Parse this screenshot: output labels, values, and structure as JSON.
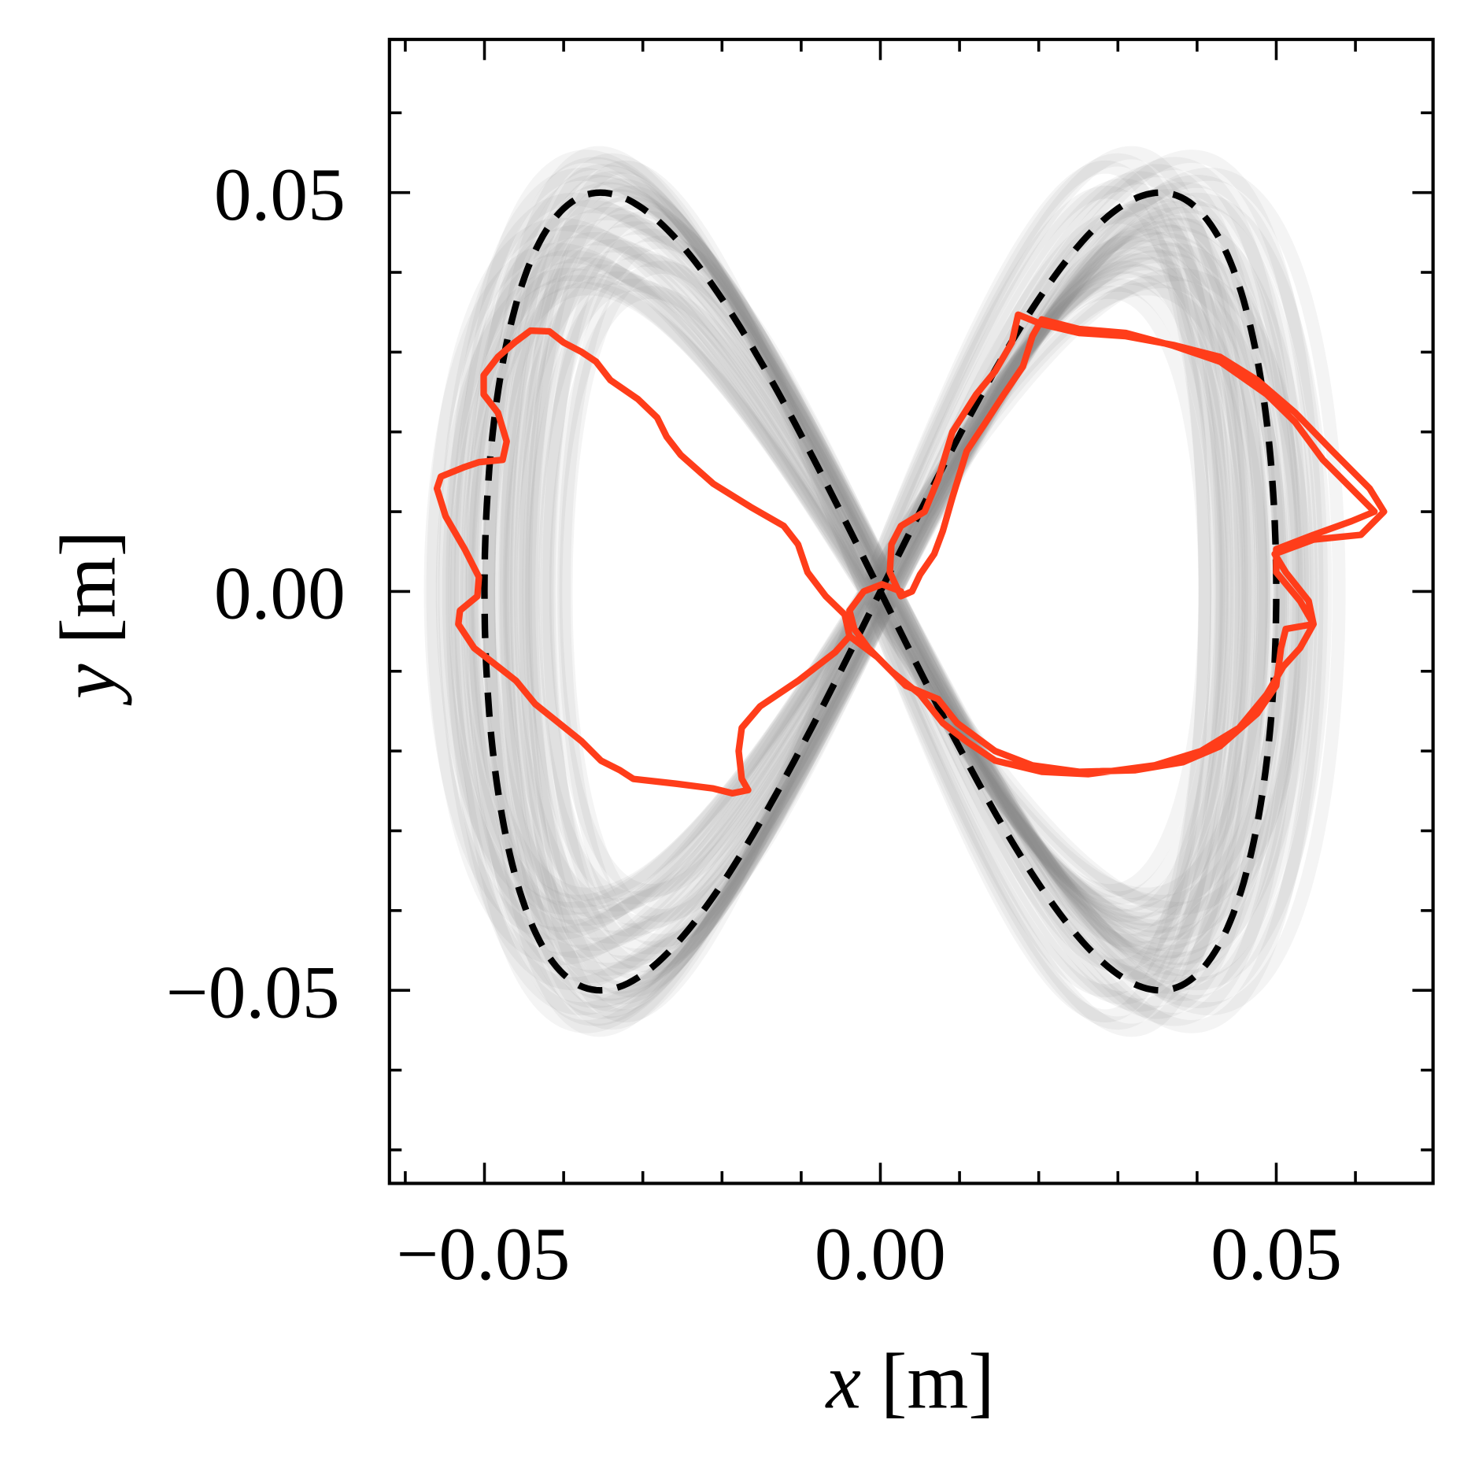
{
  "chart_data": {
    "type": "line",
    "title": "",
    "xlabel": {
      "var": "x",
      "unit": " [m]"
    },
    "ylabel": {
      "var": "y",
      "unit": " [m]"
    },
    "xlim": [
      -0.062,
      0.0698
    ],
    "ylim": [
      -0.0742,
      0.0692
    ],
    "x_ticks": [
      -0.05,
      0.0,
      0.05
    ],
    "x_tick_labels": [
      "−0.05",
      "0.00",
      "0.05"
    ],
    "y_ticks": [
      0.05,
      0.0,
      -0.05
    ],
    "y_tick_labels": [
      "0.05",
      "0.00",
      "−0.05"
    ],
    "minor_tick_step": 0.01,
    "grid": false,
    "legend": "none",
    "colors": {
      "reference": "#000000",
      "trajectory": "#ff3d1a",
      "ensemble": "#808080"
    },
    "reference": {
      "style": "dashed",
      "equation": "x = 0.05 sin t, y = 0.05 sin 2t"
    },
    "series": [
      {
        "style": "solid",
        "x": [
          -0.0167,
          -0.0175,
          -0.0179,
          -0.0175,
          -0.0152,
          -0.0104,
          -0.0057,
          -0.0039,
          -0.0045,
          -0.0069,
          -0.0092,
          -0.0104,
          -0.0122,
          -0.0164,
          -0.0211,
          -0.0252,
          -0.027,
          -0.0282,
          -0.0306,
          -0.0341,
          -0.0359,
          -0.0377,
          -0.04,
          -0.0418,
          -0.0442,
          -0.0462,
          -0.0483,
          -0.0501,
          -0.0501,
          -0.0483,
          -0.0472,
          -0.0477,
          -0.0507,
          -0.0525,
          -0.0555,
          -0.056,
          -0.0549,
          -0.0525,
          -0.0507,
          -0.0509,
          -0.0531,
          -0.0533,
          -0.0513,
          -0.0483,
          -0.046,
          -0.0436,
          -0.0406,
          -0.0377,
          -0.0353,
          -0.0329,
          -0.0312,
          -0.0258,
          -0.0211,
          -0.0187,
          -0.0167
        ],
        "y": [
          -0.0249,
          -0.0235,
          -0.02,
          -0.0171,
          -0.0144,
          -0.0112,
          -0.0076,
          -0.0056,
          -0.0029,
          -0.0006,
          0.0024,
          0.0059,
          0.0082,
          0.0106,
          0.0135,
          0.0171,
          0.0194,
          0.0218,
          0.0241,
          0.0265,
          0.0288,
          0.03,
          0.0312,
          0.0326,
          0.0327,
          0.0312,
          0.0294,
          0.0271,
          0.0247,
          0.0224,
          0.0188,
          0.0165,
          0.0162,
          0.0156,
          0.0144,
          0.0129,
          0.0094,
          0.0053,
          0.0018,
          -0.0006,
          -0.0024,
          -0.0041,
          -0.0071,
          -0.0094,
          -0.0112,
          -0.0141,
          -0.0165,
          -0.0188,
          -0.0212,
          -0.0224,
          -0.0235,
          -0.0241,
          -0.0247,
          -0.0253,
          -0.0249
        ]
      },
      {
        "style": "solid",
        "x": [
          -0.0039,
          -0.0004,
          0.0032,
          0.0073,
          0.0097,
          0.0145,
          0.0192,
          0.0251,
          0.0322,
          0.0382,
          0.0429,
          0.0476,
          0.05,
          0.0506,
          0.0512,
          0.0547,
          0.0541,
          0.0512,
          0.0498,
          0.0547,
          0.0607,
          0.0636,
          0.0618,
          0.0571,
          0.0524,
          0.0476,
          0.0429,
          0.037,
          0.031,
          0.0251,
          0.0204,
          0.0174,
          0.0166,
          0.0145,
          0.0121,
          0.0091,
          0.0073,
          0.0056,
          0.0026,
          0.0014,
          0.0012,
          0.0026,
          0.004,
          0.005,
          0.0068,
          0.0079,
          0.0091,
          0.0109,
          0.0133,
          0.0156,
          0.018,
          0.0192,
          0.0204,
          0.0251,
          0.031,
          0.037,
          0.0429,
          0.0488,
          0.0524,
          0.0559,
          0.0595,
          0.0624,
          0.0595,
          0.0547,
          0.05,
          0.05,
          0.053,
          0.0547,
          0.053,
          0.0509,
          0.0488,
          0.0453,
          0.0405,
          0.0346,
          0.0263,
          0.0204,
          0.0145,
          0.0109,
          0.0079,
          0.005,
          0.0014,
          -0.0015,
          -0.0033,
          -0.0039,
          -0.0021,
          0.0002,
          0.0026
        ],
        "y": [
          -0.0056,
          -0.0082,
          -0.0118,
          -0.0135,
          -0.0165,
          -0.02,
          -0.0218,
          -0.0226,
          -0.0224,
          -0.0214,
          -0.0194,
          -0.0153,
          -0.0118,
          -0.0071,
          -0.0047,
          -0.0041,
          -0.0012,
          0.0024,
          0.0047,
          0.0065,
          0.0071,
          0.01,
          0.0129,
          0.0176,
          0.0224,
          0.0265,
          0.0294,
          0.0309,
          0.032,
          0.0324,
          0.0335,
          0.0347,
          0.0312,
          0.0276,
          0.0247,
          0.02,
          0.0141,
          0.01,
          0.0082,
          0.0059,
          0.0024,
          -0.0006,
          0.0,
          0.0021,
          0.0047,
          0.0076,
          0.0118,
          0.0176,
          0.0212,
          0.0247,
          0.0282,
          0.032,
          0.0341,
          0.0329,
          0.0324,
          0.0308,
          0.0288,
          0.0247,
          0.0212,
          0.0165,
          0.0129,
          0.01,
          0.0088,
          0.0071,
          0.0053,
          0.0024,
          -0.0012,
          -0.0041,
          -0.0071,
          -0.0094,
          -0.0129,
          -0.0171,
          -0.02,
          -0.0218,
          -0.0229,
          -0.0226,
          -0.0212,
          -0.0188,
          -0.0165,
          -0.0129,
          -0.01,
          -0.0071,
          -0.0047,
          -0.0024,
          0.0,
          0.0009,
          0.0
        ]
      }
    ]
  }
}
